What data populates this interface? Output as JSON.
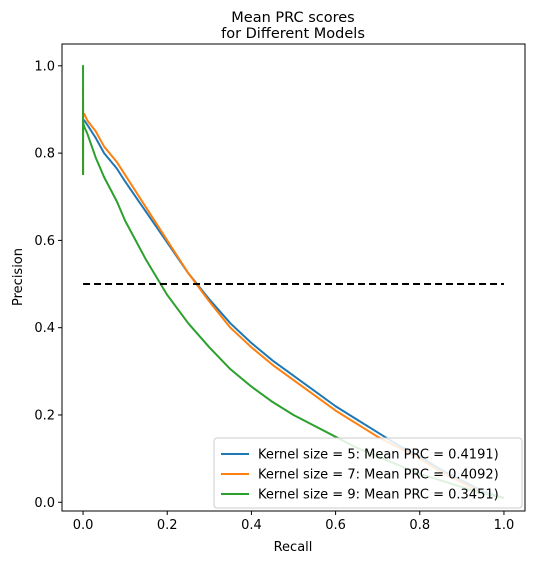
{
  "chart_data": {
    "type": "line",
    "title_line1": "Mean PRC scores",
    "title_line2": "for Different Models",
    "xlabel": "Recall",
    "ylabel": "Precision",
    "xlim": [
      -0.05,
      1.05
    ],
    "ylim": [
      -0.02,
      1.05
    ],
    "xticks": [
      0.0,
      0.2,
      0.4,
      0.6,
      0.8,
      1.0
    ],
    "xtick_labels": [
      "0.0",
      "0.2",
      "0.4",
      "0.6",
      "0.8",
      "1.0"
    ],
    "yticks": [
      0.0,
      0.2,
      0.4,
      0.6,
      0.8,
      1.0
    ],
    "ytick_labels": [
      "0.0",
      "0.2",
      "0.4",
      "0.6",
      "0.8",
      "1.0"
    ],
    "grid": false,
    "legend_position": "lower-right",
    "baseline": {
      "x": [
        0.0,
        1.0
      ],
      "y": [
        0.5,
        0.5
      ],
      "color": "#000000",
      "style": "dashed"
    },
    "series": [
      {
        "name": "Kernel size = 5: Mean PRC = 0.4191)",
        "color": "#1f77b4",
        "x": [
          0.0,
          0.0,
          0.0,
          0.003,
          0.01,
          0.03,
          0.05,
          0.08,
          0.1,
          0.15,
          0.2,
          0.25,
          0.3,
          0.35,
          0.4,
          0.45,
          0.5,
          0.55,
          0.6,
          0.65,
          0.7,
          0.75,
          0.8,
          0.85,
          0.9,
          0.95,
          1.0
        ],
        "y": [
          0.75,
          0.92,
          0.87,
          0.875,
          0.865,
          0.835,
          0.8,
          0.765,
          0.735,
          0.665,
          0.595,
          0.525,
          0.465,
          0.41,
          0.365,
          0.325,
          0.29,
          0.255,
          0.22,
          0.19,
          0.16,
          0.13,
          0.105,
          0.075,
          0.05,
          0.025,
          0.01
        ]
      },
      {
        "name": "Kernel size = 7: Mean PRC = 0.4092)",
        "color": "#ff7f0e",
        "x": [
          0.0,
          0.0,
          0.0,
          0.003,
          0.01,
          0.03,
          0.05,
          0.08,
          0.1,
          0.15,
          0.2,
          0.25,
          0.3,
          0.35,
          0.4,
          0.45,
          0.5,
          0.55,
          0.6,
          0.65,
          0.7,
          0.75,
          0.8,
          0.85,
          0.9,
          0.95,
          1.0
        ],
        "y": [
          0.75,
          0.95,
          0.89,
          0.89,
          0.875,
          0.85,
          0.815,
          0.78,
          0.75,
          0.675,
          0.6,
          0.525,
          0.46,
          0.4,
          0.355,
          0.315,
          0.28,
          0.245,
          0.21,
          0.18,
          0.15,
          0.125,
          0.1,
          0.07,
          0.045,
          0.02,
          0.01
        ]
      },
      {
        "name": "Kernel size = 9: Mean PRC = 0.3451)",
        "color": "#2ca02c",
        "x": [
          0.0,
          0.0,
          0.0,
          0.003,
          0.01,
          0.03,
          0.05,
          0.08,
          0.1,
          0.15,
          0.2,
          0.25,
          0.3,
          0.35,
          0.4,
          0.45,
          0.5,
          0.55,
          0.6,
          0.65,
          0.7,
          0.75,
          0.8,
          0.85,
          0.9,
          0.95,
          1.0
        ],
        "y": [
          0.75,
          1.0,
          0.87,
          0.86,
          0.845,
          0.79,
          0.745,
          0.69,
          0.645,
          0.555,
          0.475,
          0.41,
          0.355,
          0.305,
          0.265,
          0.23,
          0.2,
          0.175,
          0.15,
          0.125,
          0.105,
          0.085,
          0.065,
          0.05,
          0.035,
          0.02,
          0.01
        ]
      }
    ]
  }
}
